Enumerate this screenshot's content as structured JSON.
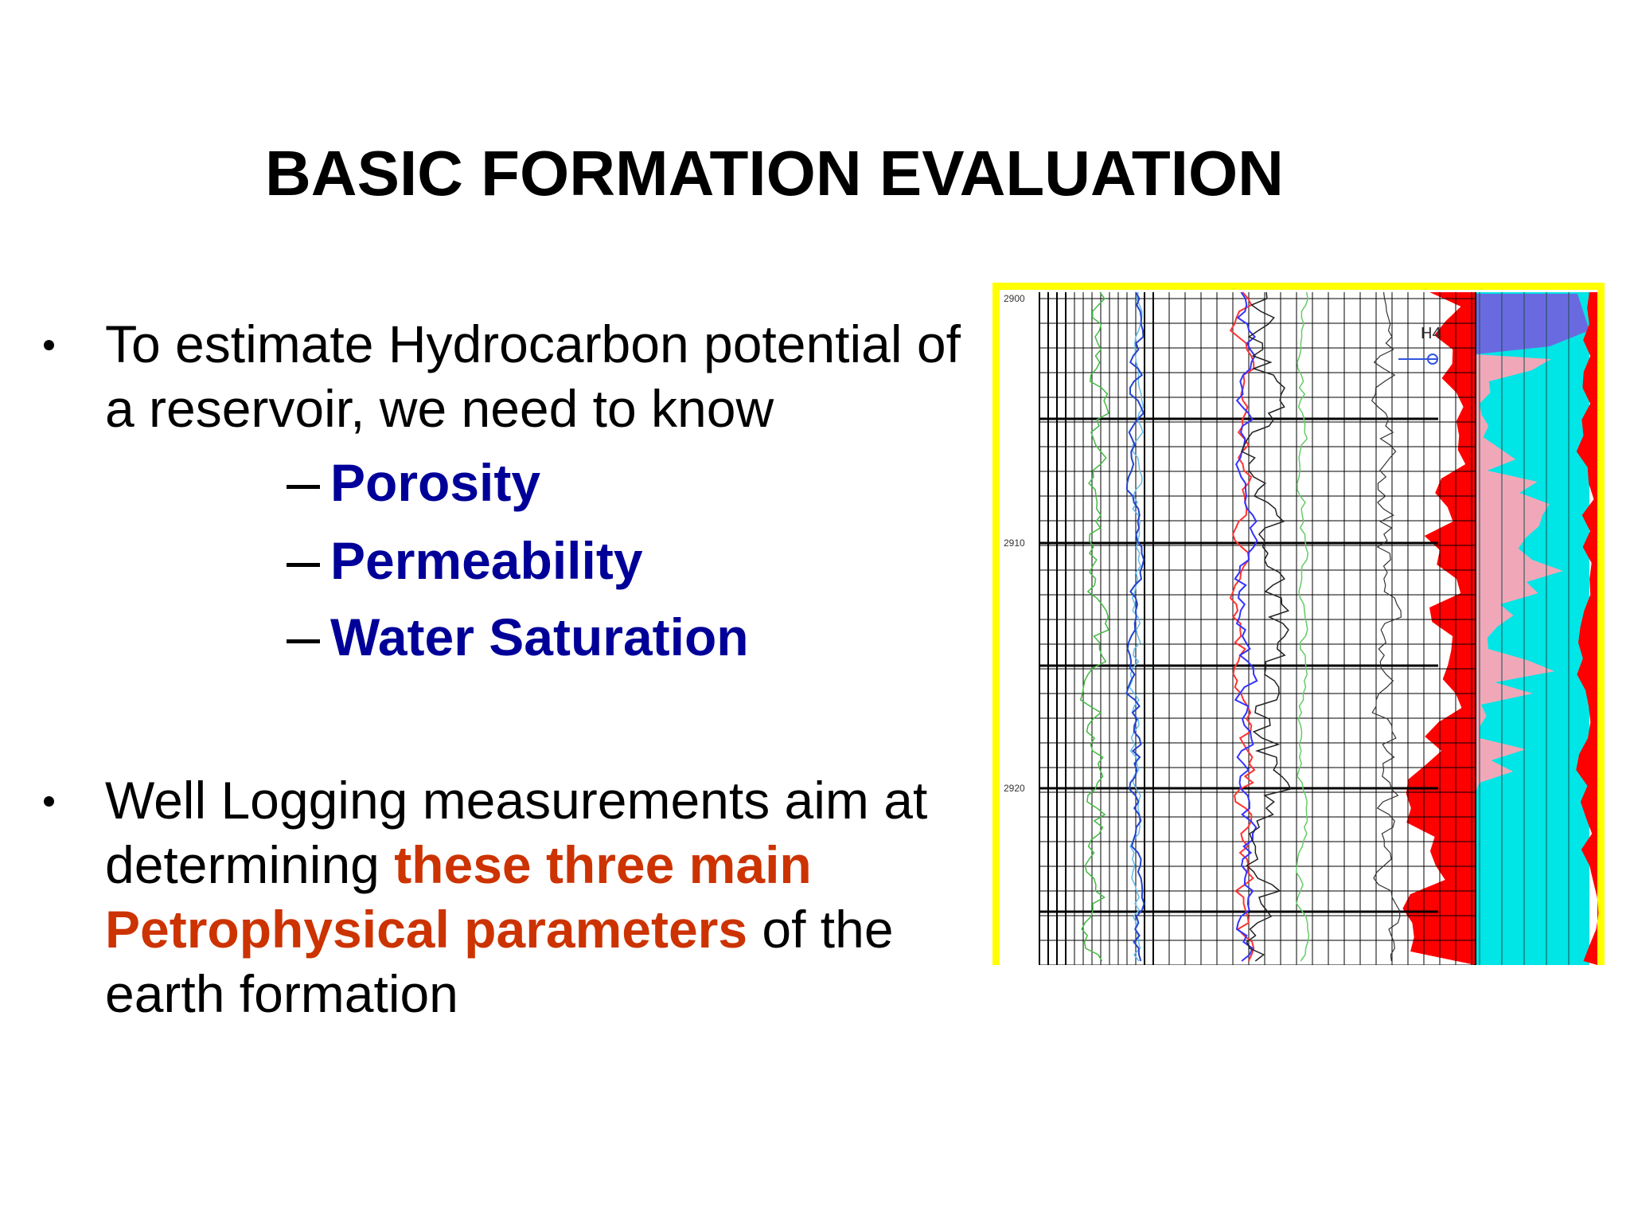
{
  "title": "BASIC FORMATION EVALUATION",
  "bullets": [
    {
      "text": "To estimate Hydrocarbon potential of a reservoir, we need to know",
      "subitems": [
        "Porosity",
        "Permeability",
        "Water Saturation"
      ]
    },
    {
      "segments": [
        "Well Logging measurements aim at determining ",
        "these three main Petrophysical parameters",
        " of the earth formation"
      ]
    }
  ],
  "figure": {
    "depth_labels": [
      "2900",
      "2910",
      "2920"
    ],
    "marker": "H4"
  }
}
